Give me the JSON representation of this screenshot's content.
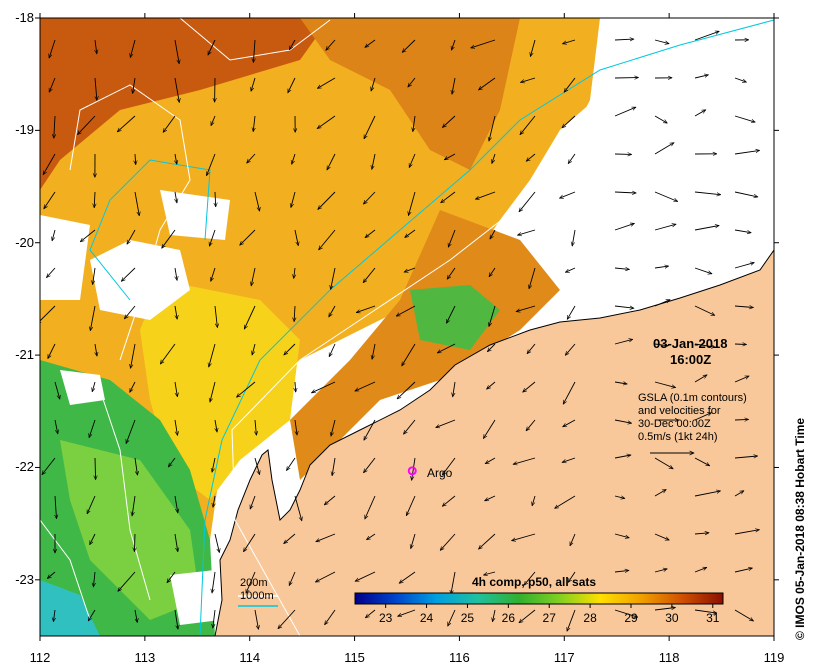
{
  "map": {
    "y_axis": {
      "min": -23.5,
      "max": -18,
      "ticks": [
        "-18",
        "-19",
        "-20",
        "-21",
        "-22",
        "-23"
      ]
    },
    "x_axis": {
      "min": 112,
      "max": 119,
      "ticks": [
        "112",
        "113",
        "114",
        "115",
        "116",
        "117",
        "118",
        "119"
      ]
    },
    "date": "03-Jan-2018",
    "time": "16:00Z",
    "gsla_note": [
      "GSLA (0.1m contours)",
      "and velocities for",
      "30-Dec 00:00Z",
      "0.5m/s (1kt 24h)"
    ],
    "argo_label": "Argo",
    "argo_position": {
      "lon": 115.55,
      "lat": -22.03,
      "color": "#ff00ff"
    },
    "legend": {
      "contour_200m": "200m",
      "contour_1000m": "1000m",
      "contour_color": "#00c8e0"
    },
    "colorbar": {
      "title": "4h comp, p50, all sats",
      "min": 22.25,
      "max": 31.25,
      "ticks": [
        "23",
        "24",
        "25",
        "26",
        "27",
        "28",
        "29",
        "30",
        "31"
      ],
      "colors": [
        "#00008b",
        "#0044cc",
        "#00a0e0",
        "#20c0a0",
        "#30b030",
        "#80d020",
        "#ffe000",
        "#f0a000",
        "#d05000",
        "#8b1000"
      ]
    },
    "credit": "© IMOS 05-Jan-2018 08:38 Hobart Time",
    "land_color": "#f8c89a"
  }
}
